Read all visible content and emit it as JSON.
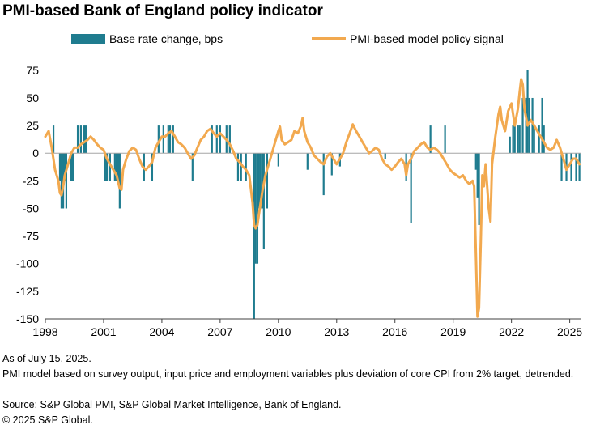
{
  "title": "PMI-based Bank of England policy indicator",
  "footnotes": {
    "as_of": "As of July 15, 2025.",
    "model": "PMI model based on survey output, input price and employment variables plus deviation of core CPI from 2% target, detrended.",
    "source": "Source: S&P Global PMI, S&P Global Market Intelligence, Bank of England.",
    "copyright": "© 2025 S&P Global."
  },
  "chart_data": {
    "type": "bar+line",
    "title": "PMI-based Bank of England policy indicator",
    "xlabel": "",
    "ylabel": "",
    "xlim": [
      1998,
      2025.6
    ],
    "ylim": [
      -150,
      80
    ],
    "yticks": [
      75,
      50,
      25,
      0,
      -25,
      -50,
      -75,
      -100,
      -125,
      -150
    ],
    "xticks": [
      "1998",
      "2001",
      "2004",
      "2007",
      "2010",
      "2013",
      "2016",
      "2019",
      "2022",
      "2025"
    ],
    "grid": false,
    "legend_position": "top",
    "colors": {
      "bars": "#1F7C8F",
      "line": "#F2A94F"
    },
    "series": [
      {
        "name": "Base rate change, bps",
        "type": "bar",
        "points": [
          [
            1998.42,
            25
          ],
          [
            1998.75,
            -25
          ],
          [
            1998.83,
            -50
          ],
          [
            1998.92,
            -50
          ],
          [
            1999.0,
            -25
          ],
          [
            1999.08,
            -50
          ],
          [
            1999.33,
            -25
          ],
          [
            1999.42,
            -25
          ],
          [
            1999.67,
            25
          ],
          [
            1999.83,
            25
          ],
          [
            2000.0,
            25
          ],
          [
            2000.08,
            25
          ],
          [
            2001.08,
            -25
          ],
          [
            2001.17,
            -25
          ],
          [
            2001.33,
            -25
          ],
          [
            2001.58,
            -25
          ],
          [
            2001.67,
            -25
          ],
          [
            2001.75,
            -25
          ],
          [
            2001.83,
            -50
          ],
          [
            2003.08,
            -25
          ],
          [
            2003.5,
            -25
          ],
          [
            2003.83,
            25
          ],
          [
            2004.08,
            25
          ],
          [
            2004.33,
            25
          ],
          [
            2004.42,
            25
          ],
          [
            2004.58,
            25
          ],
          [
            2005.58,
            -25
          ],
          [
            2006.58,
            25
          ],
          [
            2006.83,
            25
          ],
          [
            2007.0,
            25
          ],
          [
            2007.33,
            25
          ],
          [
            2007.5,
            25
          ],
          [
            2007.92,
            -25
          ],
          [
            2008.08,
            -25
          ],
          [
            2008.33,
            -25
          ],
          [
            2008.75,
            -150
          ],
          [
            2008.83,
            -100
          ],
          [
            2008.92,
            -100
          ],
          [
            2009.0,
            -50
          ],
          [
            2009.08,
            -50
          ],
          [
            2009.17,
            -50
          ],
          [
            2009.25,
            -87
          ],
          [
            2009.42,
            -50
          ],
          [
            2010.0,
            -12
          ],
          [
            2011.5,
            -15
          ],
          [
            2012.33,
            -38
          ],
          [
            2012.75,
            -20
          ],
          [
            2013.17,
            -12
          ],
          [
            2015.5,
            -5
          ],
          [
            2016.58,
            -25
          ],
          [
            2016.83,
            -63
          ],
          [
            2017.83,
            25
          ],
          [
            2018.58,
            25
          ],
          [
            2020.17,
            -15
          ],
          [
            2020.25,
            -40
          ],
          [
            2020.33,
            -65
          ],
          [
            2021.92,
            15
          ],
          [
            2022.08,
            25
          ],
          [
            2022.17,
            25
          ],
          [
            2022.33,
            25
          ],
          [
            2022.42,
            25
          ],
          [
            2022.58,
            50
          ],
          [
            2022.75,
            50
          ],
          [
            2022.83,
            75
          ],
          [
            2022.92,
            50
          ],
          [
            2023.08,
            50
          ],
          [
            2023.17,
            25
          ],
          [
            2023.42,
            25
          ],
          [
            2023.58,
            50
          ],
          [
            2023.67,
            25
          ],
          [
            2024.58,
            -25
          ],
          [
            2024.83,
            -25
          ],
          [
            2025.08,
            -25
          ],
          [
            2025.33,
            -25
          ],
          [
            2025.5,
            -25
          ]
        ]
      },
      {
        "name": "PMI-based model policy signal",
        "type": "line",
        "points": [
          [
            1998.0,
            15
          ],
          [
            1998.17,
            20
          ],
          [
            1998.33,
            5
          ],
          [
            1998.5,
            -15
          ],
          [
            1998.67,
            -25
          ],
          [
            1998.75,
            -36
          ],
          [
            1998.83,
            -38
          ],
          [
            1998.92,
            -30
          ],
          [
            1999.0,
            -20
          ],
          [
            1999.17,
            -10
          ],
          [
            1999.33,
            0
          ],
          [
            1999.5,
            5
          ],
          [
            1999.67,
            5
          ],
          [
            1999.83,
            8
          ],
          [
            2000.0,
            10
          ],
          [
            2000.17,
            12
          ],
          [
            2000.33,
            15
          ],
          [
            2000.5,
            12
          ],
          [
            2000.67,
            8
          ],
          [
            2000.83,
            5
          ],
          [
            2001.0,
            3
          ],
          [
            2001.17,
            -5
          ],
          [
            2001.33,
            -10
          ],
          [
            2001.5,
            -15
          ],
          [
            2001.67,
            -20
          ],
          [
            2001.83,
            -32
          ],
          [
            2001.92,
            -33
          ],
          [
            2002.0,
            -15
          ],
          [
            2002.17,
            -5
          ],
          [
            2002.33,
            2
          ],
          [
            2002.5,
            5
          ],
          [
            2002.67,
            3
          ],
          [
            2002.83,
            -5
          ],
          [
            2003.0,
            -12
          ],
          [
            2003.17,
            -15
          ],
          [
            2003.33,
            -12
          ],
          [
            2003.5,
            -8
          ],
          [
            2003.67,
            5
          ],
          [
            2003.83,
            10
          ],
          [
            2004.0,
            15
          ],
          [
            2004.17,
            15
          ],
          [
            2004.33,
            18
          ],
          [
            2004.5,
            20
          ],
          [
            2004.67,
            15
          ],
          [
            2004.83,
            10
          ],
          [
            2005.0,
            8
          ],
          [
            2005.17,
            5
          ],
          [
            2005.33,
            0
          ],
          [
            2005.5,
            -5
          ],
          [
            2005.67,
            -2
          ],
          [
            2005.83,
            5
          ],
          [
            2006.0,
            12
          ],
          [
            2006.17,
            15
          ],
          [
            2006.33,
            20
          ],
          [
            2006.5,
            22
          ],
          [
            2006.67,
            18
          ],
          [
            2006.83,
            15
          ],
          [
            2007.0,
            18
          ],
          [
            2007.17,
            15
          ],
          [
            2007.33,
            12
          ],
          [
            2007.5,
            8
          ],
          [
            2007.67,
            2
          ],
          [
            2007.83,
            -5
          ],
          [
            2008.0,
            -8
          ],
          [
            2008.17,
            -12
          ],
          [
            2008.33,
            -15
          ],
          [
            2008.5,
            -20
          ],
          [
            2008.67,
            -45
          ],
          [
            2008.75,
            -65
          ],
          [
            2008.83,
            -68
          ],
          [
            2008.92,
            -65
          ],
          [
            2009.0,
            -55
          ],
          [
            2009.17,
            -35
          ],
          [
            2009.33,
            -20
          ],
          [
            2009.5,
            -10
          ],
          [
            2009.67,
            0
          ],
          [
            2009.83,
            10
          ],
          [
            2010.0,
            20
          ],
          [
            2010.08,
            24
          ],
          [
            2010.17,
            12
          ],
          [
            2010.33,
            8
          ],
          [
            2010.5,
            10
          ],
          [
            2010.67,
            12
          ],
          [
            2010.83,
            20
          ],
          [
            2011.0,
            18
          ],
          [
            2011.17,
            25
          ],
          [
            2011.25,
            32
          ],
          [
            2011.33,
            20
          ],
          [
            2011.5,
            10
          ],
          [
            2011.67,
            5
          ],
          [
            2011.83,
            -2
          ],
          [
            2012.0,
            -5
          ],
          [
            2012.17,
            -8
          ],
          [
            2012.33,
            -10
          ],
          [
            2012.5,
            -3
          ],
          [
            2012.67,
            0
          ],
          [
            2012.83,
            -5
          ],
          [
            2013.0,
            -10
          ],
          [
            2013.17,
            -5
          ],
          [
            2013.33,
            0
          ],
          [
            2013.5,
            10
          ],
          [
            2013.67,
            18
          ],
          [
            2013.83,
            26
          ],
          [
            2014.0,
            20
          ],
          [
            2014.17,
            15
          ],
          [
            2014.33,
            10
          ],
          [
            2014.5,
            5
          ],
          [
            2014.67,
            0
          ],
          [
            2014.83,
            2
          ],
          [
            2015.0,
            5
          ],
          [
            2015.17,
            3
          ],
          [
            2015.33,
            -5
          ],
          [
            2015.5,
            -10
          ],
          [
            2015.67,
            -12
          ],
          [
            2015.83,
            -15
          ],
          [
            2016.0,
            -12
          ],
          [
            2016.17,
            -8
          ],
          [
            2016.33,
            -5
          ],
          [
            2016.5,
            -10
          ],
          [
            2016.58,
            -20
          ],
          [
            2016.67,
            -10
          ],
          [
            2016.83,
            -5
          ],
          [
            2017.0,
            2
          ],
          [
            2017.17,
            5
          ],
          [
            2017.33,
            8
          ],
          [
            2017.5,
            10
          ],
          [
            2017.67,
            5
          ],
          [
            2017.83,
            3
          ],
          [
            2018.0,
            5
          ],
          [
            2018.17,
            3
          ],
          [
            2018.33,
            0
          ],
          [
            2018.5,
            -5
          ],
          [
            2018.67,
            -10
          ],
          [
            2018.83,
            -15
          ],
          [
            2019.0,
            -18
          ],
          [
            2019.17,
            -20
          ],
          [
            2019.33,
            -22
          ],
          [
            2019.5,
            -20
          ],
          [
            2019.67,
            -25
          ],
          [
            2019.83,
            -28
          ],
          [
            2020.0,
            -25
          ],
          [
            2020.08,
            -30
          ],
          [
            2020.25,
            -148
          ],
          [
            2020.33,
            -140
          ],
          [
            2020.42,
            -80
          ],
          [
            2020.5,
            -20
          ],
          [
            2020.58,
            -30
          ],
          [
            2020.67,
            -10
          ],
          [
            2020.83,
            -50
          ],
          [
            2020.92,
            -62
          ],
          [
            2021.0,
            -10
          ],
          [
            2021.17,
            15
          ],
          [
            2021.33,
            35
          ],
          [
            2021.42,
            42
          ],
          [
            2021.5,
            30
          ],
          [
            2021.67,
            20
          ],
          [
            2021.83,
            38
          ],
          [
            2022.0,
            45
          ],
          [
            2022.17,
            25
          ],
          [
            2022.33,
            40
          ],
          [
            2022.42,
            55
          ],
          [
            2022.5,
            67
          ],
          [
            2022.58,
            62
          ],
          [
            2022.67,
            40
          ],
          [
            2022.83,
            25
          ],
          [
            2023.0,
            30
          ],
          [
            2023.17,
            25
          ],
          [
            2023.33,
            20
          ],
          [
            2023.5,
            15
          ],
          [
            2023.67,
            10
          ],
          [
            2023.83,
            5
          ],
          [
            2024.0,
            3
          ],
          [
            2024.17,
            5
          ],
          [
            2024.33,
            12
          ],
          [
            2024.5,
            5
          ],
          [
            2024.67,
            -5
          ],
          [
            2024.83,
            -15
          ],
          [
            2025.0,
            -10
          ],
          [
            2025.17,
            -5
          ],
          [
            2025.33,
            -5
          ],
          [
            2025.5,
            -10
          ]
        ]
      }
    ]
  }
}
